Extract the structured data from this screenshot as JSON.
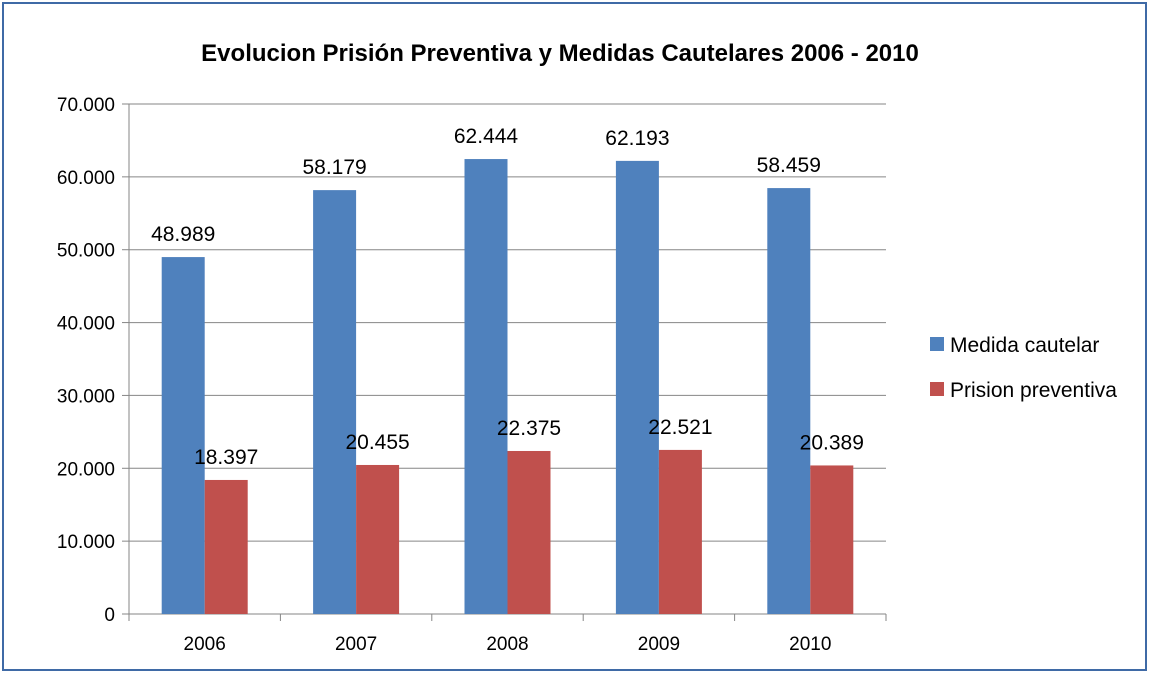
{
  "chart_data": {
    "type": "bar",
    "title": "Evolucion Prisión Preventiva y Medidas Cautelares 2006 - 2010",
    "xlabel": "",
    "ylabel": "",
    "ylim": [
      0,
      70000
    ],
    "y_ticks": [
      0,
      10000,
      20000,
      30000,
      40000,
      50000,
      60000,
      70000
    ],
    "y_tick_labels": [
      "0",
      "10.000",
      "20.000",
      "30.000",
      "40.000",
      "50.000",
      "60.000",
      "70.000"
    ],
    "categories": [
      "2006",
      "2007",
      "2008",
      "2009",
      "2010"
    ],
    "series": [
      {
        "name": "Medida cautelar",
        "color": "#4f81bd",
        "values": [
          48989,
          58179,
          62444,
          62193,
          58459
        ],
        "labels": [
          "48.989",
          "58.179",
          "62.444",
          "62.193",
          "58.459"
        ]
      },
      {
        "name": "Prision preventiva",
        "color": "#c0504d",
        "values": [
          18397,
          20455,
          22375,
          22521,
          20389
        ],
        "labels": [
          "18.397",
          "20.455",
          "22.375",
          "22.521",
          "20.389"
        ]
      }
    ],
    "grid": true,
    "legend_position": "right"
  }
}
